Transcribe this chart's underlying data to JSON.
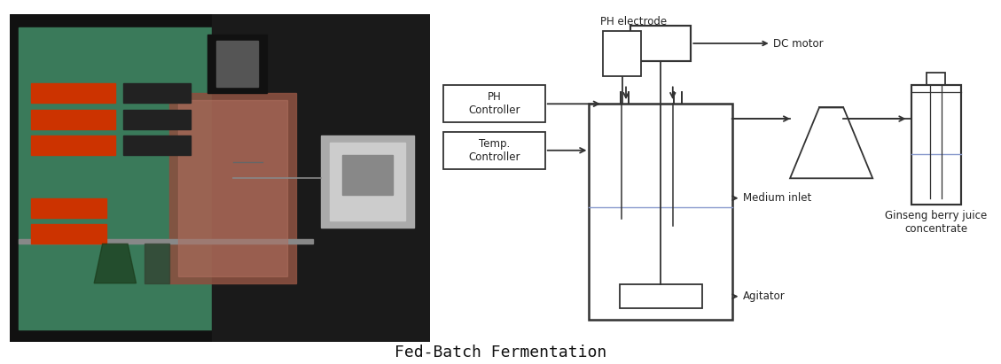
{
  "title": "Fed-Batch Fermentation",
  "title_fontsize": 13,
  "bg_color": "#ffffff",
  "line_color": "#333333",
  "ph_controller_label": "PH\nController",
  "temp_controller_label": "Temp.\nController",
  "ph_electrode_label": "PH electrode",
  "dc_motor_label": "DC motor",
  "medium_inlet_label": "Medium inlet",
  "agitator_label": "Agitator",
  "ginseng_label": "Ginseng berry juice\nconcentrate",
  "label_fontsize": 8.5,
  "label_color": "#222222",
  "liquid_color": "#8899cc",
  "photo_bg": "#111111",
  "panel_color": "#3a7a5a",
  "display_color": "#cc3300",
  "vessel_color": "#8a5040"
}
